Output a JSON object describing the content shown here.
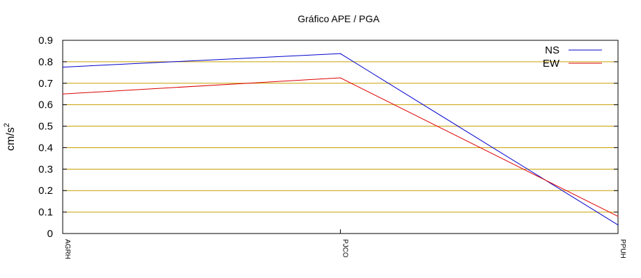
{
  "chart_data": {
    "type": "line",
    "title": "Gráfico  APE / PGA",
    "xlabel": "",
    "ylabel": "cm/s",
    "ylabel_superscript": "2",
    "categories": [
      "AGRH",
      "PJCO",
      "PPUH"
    ],
    "ylim": [
      0,
      0.9
    ],
    "yticks": [
      "0",
      "0.1",
      "0.2",
      "0.3",
      "0.4",
      "0.5",
      "0.6",
      "0.7",
      "0.8",
      "0.9"
    ],
    "grid": true,
    "legend_position": "top-right",
    "series": [
      {
        "name": "NS",
        "color": "#0000cc",
        "values": [
          0.775,
          0.838,
          0.04
        ]
      },
      {
        "name": "EW",
        "color": "#dd0000",
        "values": [
          0.65,
          0.725,
          0.08
        ]
      }
    ],
    "grid_color": "#c8a000"
  }
}
